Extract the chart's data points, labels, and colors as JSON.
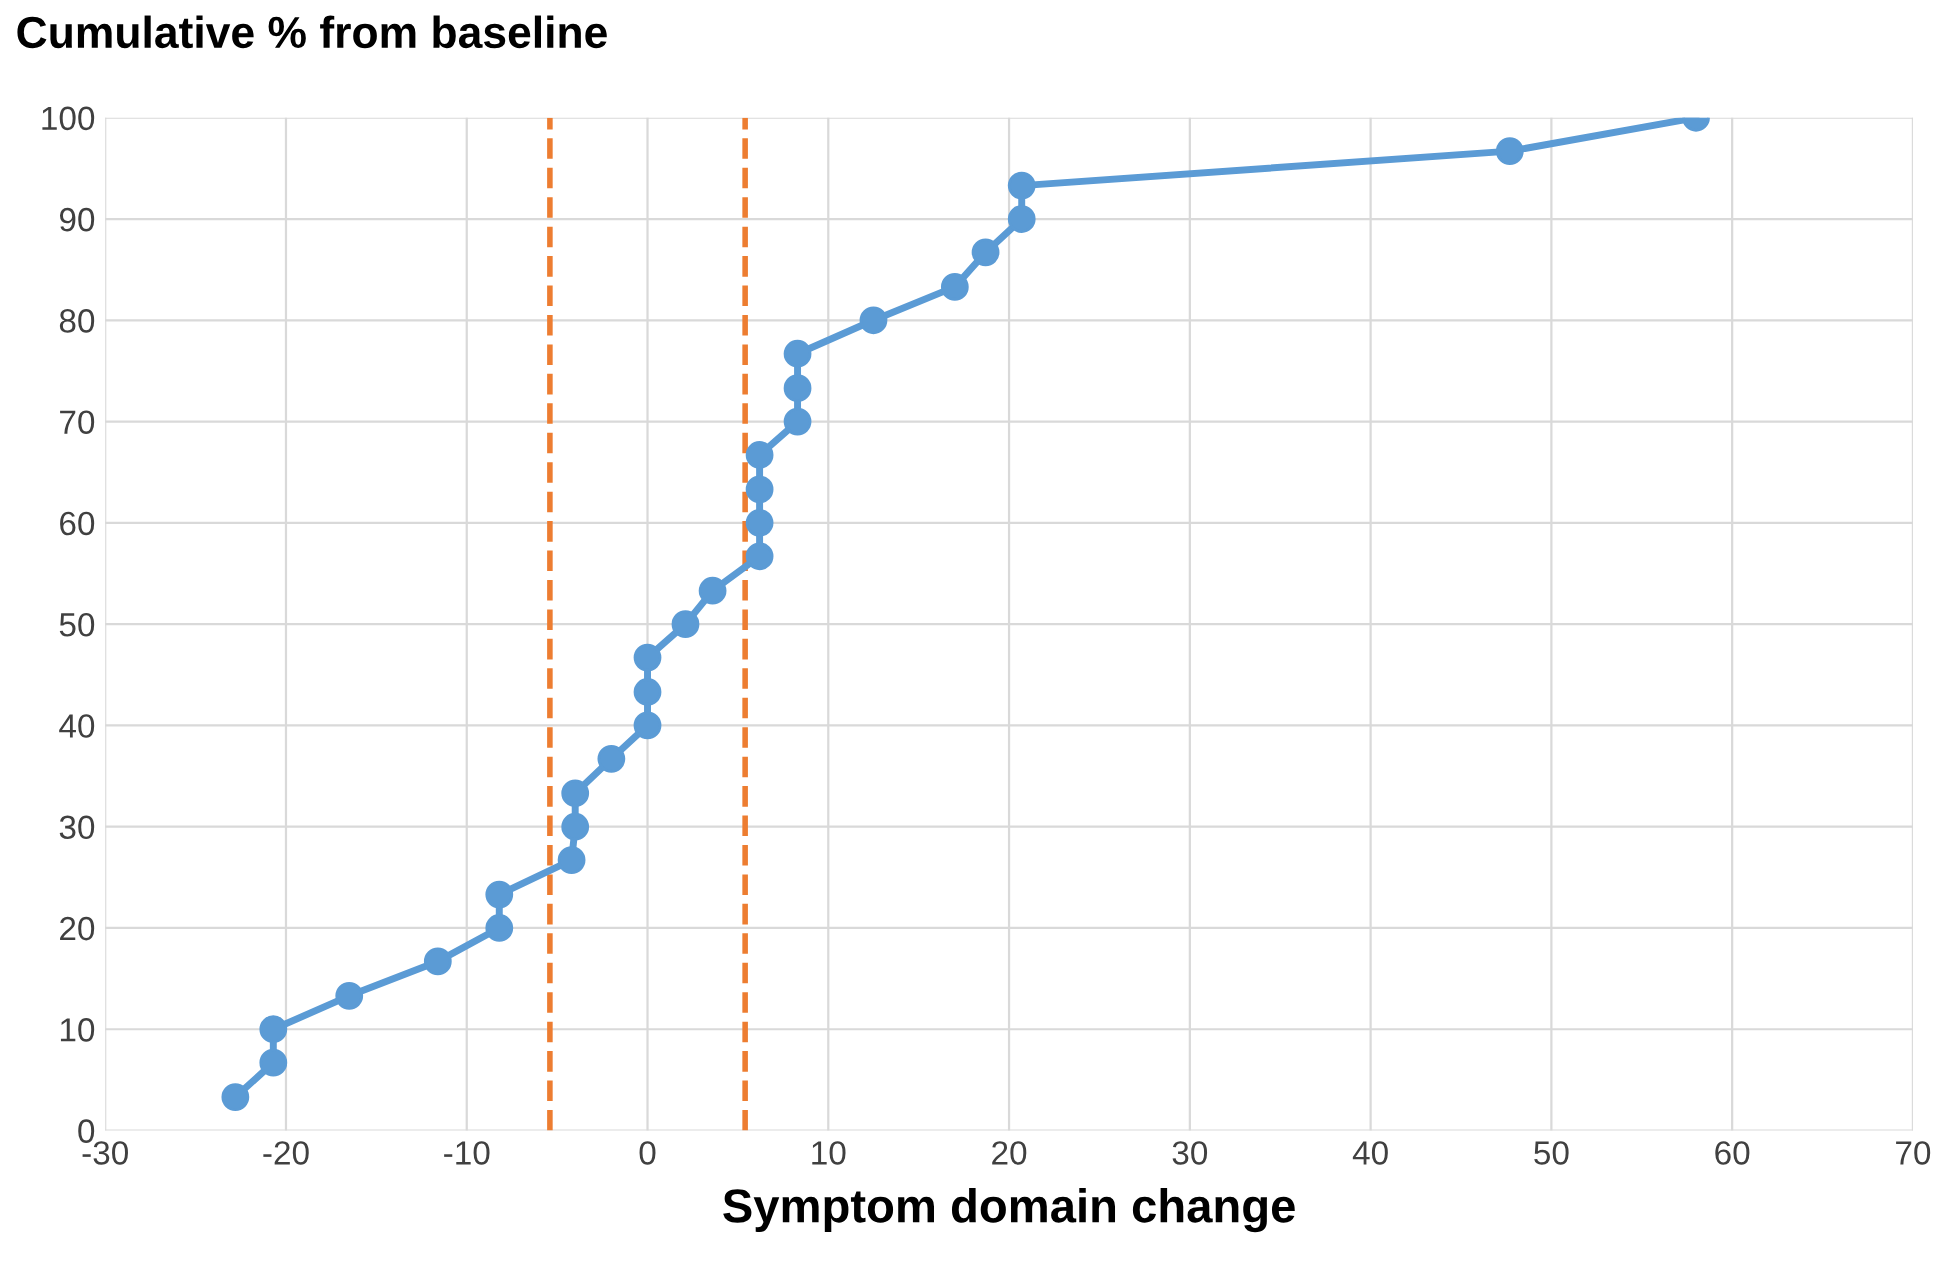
{
  "chart_data": {
    "type": "line",
    "title": "Cumulative % from baseline",
    "xlabel": "Symptom domain change",
    "x": [
      -22.8,
      -20.7,
      -20.7,
      -16.5,
      -11.6,
      -8.2,
      -8.2,
      -4.2,
      -4.0,
      -4.0,
      -2.0,
      0,
      0,
      0,
      2.1,
      3.6,
      6.2,
      6.2,
      6.2,
      6.2,
      8.3,
      8.3,
      8.3,
      12.5,
      17.0,
      18.7,
      20.7,
      20.7,
      47.7,
      58.0
    ],
    "series": [
      {
        "color": "#5b9bd5",
        "values": [
          3.3,
          6.7,
          10,
          13.3,
          16.7,
          20,
          23.3,
          26.7,
          30,
          33.3,
          36.7,
          40,
          43.3,
          46.7,
          50,
          53.3,
          56.7,
          60,
          63.3,
          66.7,
          70,
          73.3,
          76.7,
          80,
          83.3,
          86.7,
          90,
          93.3,
          96.7,
          100
        ]
      }
    ],
    "xlim": [
      -30,
      70
    ],
    "xticks": [
      -30,
      -20,
      -10,
      0,
      10,
      20,
      30,
      40,
      50,
      60,
      70
    ],
    "ylim": [
      0,
      100
    ],
    "yticks": [
      0,
      10,
      20,
      30,
      40,
      50,
      60,
      70,
      80,
      90,
      100
    ],
    "ref_lines": [
      {
        "axis": "x",
        "value": -5.4,
        "label": null,
        "color": "#ed7d31",
        "line_style": "dashed"
      },
      {
        "axis": "x",
        "value": 5.4,
        "label": null,
        "color": "#ed7d31",
        "line_style": "dashed"
      }
    ],
    "grid": true,
    "marker": "circle",
    "line_style": "solid",
    "legend": false
  }
}
